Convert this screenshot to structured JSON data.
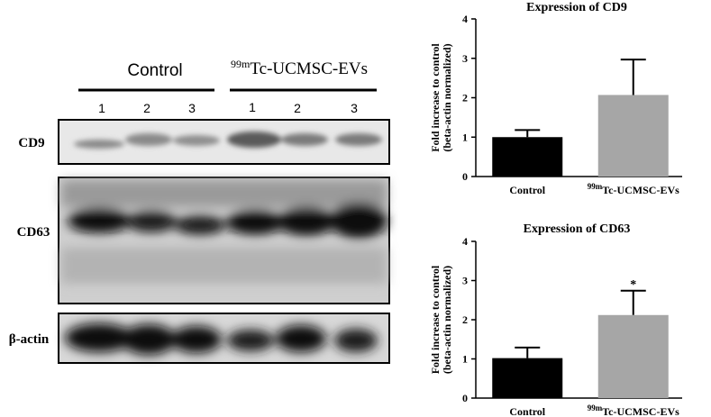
{
  "blot": {
    "groups": [
      {
        "label": "Control"
      },
      {
        "prefix": "99m",
        "label": "Tc-UCMSC-EVs"
      }
    ],
    "lanes": [
      "1",
      "2",
      "3",
      "1",
      "2",
      "3"
    ],
    "rows": [
      "CD9",
      "CD63",
      "β-actin"
    ]
  },
  "chart_data": [
    {
      "type": "bar",
      "title": "Expression of CD9",
      "ylabel": [
        "Fold increase to control",
        "(beta-actin normalized)"
      ],
      "categories": [
        "Control",
        "Tc-UCMSC-EVs"
      ],
      "category_prefixes": [
        null,
        "99m"
      ],
      "values": [
        1.0,
        2.07
      ],
      "errors": [
        0.18,
        0.9
      ],
      "colors": [
        "#000000",
        "#a6a6a6"
      ],
      "ylim": [
        0,
        4
      ],
      "yticks": [
        0,
        1,
        2,
        3,
        4
      ]
    },
    {
      "type": "bar",
      "title": "Expression of CD63",
      "ylabel": [
        "Fold increase to control",
        "(beta-actin normalized)"
      ],
      "categories": [
        "Control",
        "Tc-UCMSC-EVs"
      ],
      "category_prefixes": [
        null,
        "99m"
      ],
      "values": [
        1.02,
        2.12
      ],
      "errors": [
        0.27,
        0.62
      ],
      "colors": [
        "#000000",
        "#a6a6a6"
      ],
      "annotations": [
        null,
        "*"
      ],
      "ylim": [
        0,
        4
      ],
      "yticks": [
        0,
        1,
        2,
        3,
        4
      ]
    }
  ]
}
